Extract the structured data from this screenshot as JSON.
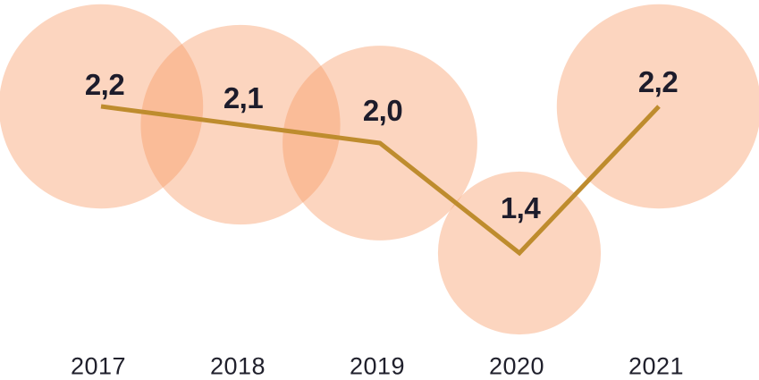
{
  "chart_data": {
    "type": "line",
    "variant": "bubble-line",
    "categories": [
      "2017",
      "2018",
      "2019",
      "2020",
      "2021"
    ],
    "values": [
      2.2,
      2.1,
      2.0,
      1.4,
      2.2
    ],
    "value_labels": [
      "2,2",
      "2,1",
      "2,0",
      "1,4",
      "2,2"
    ],
    "title": "",
    "xlabel": "",
    "ylabel": "",
    "grid": false,
    "legend": false,
    "notes": "bubble area proportional to value; decimal comma labels above each point"
  },
  "style": {
    "bubble_color": "#F7975E",
    "bubble_opacity": "0.40",
    "line_color": "#BE8C2E",
    "value_label_color": "#1D1C2B",
    "year_label_color": "#20202C",
    "background_color": "#FFFFFF"
  }
}
